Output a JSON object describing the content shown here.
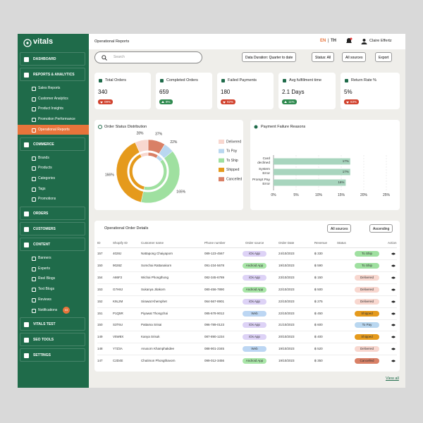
{
  "sidebar": {
    "logo": "vitals",
    "notification_badge": "03",
    "items": [
      {
        "label": "DASHBOARD"
      },
      {
        "label": "REPORTS & ANALYTICS",
        "children": [
          "Sales Reports",
          "Customer Analytics",
          "Product Insights",
          "Promotion Performance",
          "Operational Reports"
        ]
      },
      {
        "label": "COMMERCE",
        "children": [
          "Brands",
          "Products",
          "Categories",
          "Tags",
          "Promotions"
        ]
      },
      {
        "label": "ORDERS"
      },
      {
        "label": "CUSTOMERS"
      },
      {
        "label": "CONTENT",
        "children": [
          "Banners",
          "Experts",
          "Reel Blogs",
          "Text Blogs",
          "Reviews",
          "Notifications"
        ]
      },
      {
        "label": "VITALS TEST"
      },
      {
        "label": "SEO TOOLS"
      },
      {
        "label": "SETTINGS"
      }
    ]
  },
  "header": {
    "title": "Operational Reports",
    "lang_active": "EN",
    "lang_separator": "|",
    "lang_other": "TH",
    "user": "Claire Effertz"
  },
  "toolbar": {
    "search_placeholder": "Search",
    "duration": "Data Duration: Quarter to date",
    "status": "Status: All",
    "sources": "All sources",
    "export": "Export"
  },
  "kpis": [
    {
      "title": "Total Orders",
      "value": "340",
      "change": "09%",
      "trend": "down"
    },
    {
      "title": "Completed Orders",
      "value": "659",
      "change": "8%",
      "trend": "up"
    },
    {
      "title": "Failed Payments",
      "value": "180",
      "change": "92%",
      "trend": "down"
    },
    {
      "title": "Avg fulfillment time",
      "value": "2.1 Days",
      "change": "11%",
      "trend": "up"
    },
    {
      "title": "Return Rate %",
      "value": "5%",
      "change": "83%",
      "trend": "down"
    }
  ],
  "chart_data": [
    {
      "type": "pie",
      "title": "Order Status Distribution",
      "categories": [
        "Delivered",
        "To Pay",
        "To Ship",
        "Shipped",
        "Cancelled"
      ],
      "values": [
        28,
        22,
        165,
        166,
        37
      ],
      "value_labels": [
        "28%",
        "22%",
        "165%",
        "166%",
        "37%"
      ],
      "colors": [
        "#f8d7cf",
        "#b9d7f0",
        "#9fe0a0",
        "#e59a1c",
        "#d98066"
      ]
    },
    {
      "type": "bar",
      "title": "Payment Failure Reasons",
      "categories": [
        "Card declined",
        "System Error",
        "Prompt Pay Error"
      ],
      "values": [
        17,
        17,
        16
      ],
      "value_labels": [
        "17%",
        "17%",
        "16%"
      ],
      "color": "#a8d5be",
      "xlim": [
        0,
        25
      ],
      "xticks": [
        {
          "value": 0,
          "label": "0%"
        },
        {
          "value": 5,
          "label": "5%"
        },
        {
          "value": 10,
          "label": "10%"
        },
        {
          "value": 15,
          "label": "15%"
        },
        {
          "value": 20,
          "label": "20%"
        },
        {
          "value": 25,
          "label": "25%"
        }
      ],
      "grid": true
    }
  ],
  "table": {
    "title": "Operational Order Details",
    "filters": [
      "All sources",
      "Ascending"
    ],
    "columns": [
      "ID",
      "Shopify ID",
      "Customer name",
      "Phone number",
      "Order source",
      "Order Date",
      "Revenue",
      "Status",
      "Action"
    ],
    "sources": [
      {
        "label": "iOs App",
        "color": "#ddd2f6"
      },
      {
        "label": "Android App",
        "color": "#a9e6a8"
      },
      {
        "label": "Web",
        "color": "#bcd6f3"
      }
    ],
    "statuses": [
      {
        "label": "To Ship",
        "color": "#9fe0a0"
      },
      {
        "label": "Delivered",
        "color": "#f8d7cf"
      },
      {
        "label": "Shipped",
        "color": "#e59a1c"
      },
      {
        "label": "To Pay",
        "color": "#b9d7f0"
      },
      {
        "label": "Cancelled",
        "color": "#d98066"
      }
    ],
    "rows": [
      {
        "id": "157",
        "shopify_id": "4028J",
        "customer": "Nattapong Chaiyaporn",
        "phone": "089-123-4567",
        "source": 0,
        "date": "24/10/2023",
        "revenue": "฿ 330",
        "status": 0
      },
      {
        "id": "150",
        "shopify_id": "9028Z",
        "customer": "Somchai Rattanakorn",
        "phone": "091-234-5678",
        "source": 1,
        "date": "19/10/2023",
        "revenue": "฿ 590",
        "status": 0
      },
      {
        "id": "154",
        "shopify_id": "A86F2",
        "customer": "Wichai Phongthong",
        "phone": "082-345-6789",
        "source": 0,
        "date": "23/10/2023",
        "revenue": "฿ 150",
        "status": 1
      },
      {
        "id": "153",
        "shopify_id": "G7H8J",
        "customer": "Sukanya Jitakorn",
        "phone": "080-456-7890",
        "source": 1,
        "date": "22/10/2023",
        "revenue": "฿ 500",
        "status": 1
      },
      {
        "id": "152",
        "shopify_id": "K9L2M",
        "customer": "Sirawat Khemphet",
        "phone": "064-567-8901",
        "source": 0,
        "date": "22/10/2023",
        "revenue": "฿ 275",
        "status": 1
      },
      {
        "id": "151",
        "shopify_id": "P1Q5R",
        "customer": "Piyawat Thongchai",
        "phone": "085-678-9012",
        "source": 2,
        "date": "22/10/2023",
        "revenue": "฿ 450",
        "status": 2
      },
      {
        "id": "150",
        "shopify_id": "S3T6U",
        "customer": "Pattama Srisai",
        "phone": "096-789-0123",
        "source": 0,
        "date": "21/10/2023",
        "revenue": "฿ 600",
        "status": 3
      },
      {
        "id": "149",
        "shopify_id": "V5W8X",
        "customer": "Kanya Srisuk",
        "phone": "087-890-1234",
        "source": 0,
        "date": "20/10/2023",
        "revenue": "฿ 400",
        "status": 2
      },
      {
        "id": "148",
        "shopify_id": "Y7Z3A",
        "customer": "Anusorn Khamphakdee",
        "phone": "088-901-2345",
        "source": 2,
        "date": "19/10/2023",
        "revenue": "฿ 520",
        "status": 1
      },
      {
        "id": "147",
        "shopify_id": "C2D4E",
        "customer": "Chutimon Phongthavorn",
        "phone": "099-012-3456",
        "source": 1,
        "date": "19/10/2023",
        "revenue": "฿ 350",
        "status": 4
      }
    ],
    "view_all": "View all"
  }
}
